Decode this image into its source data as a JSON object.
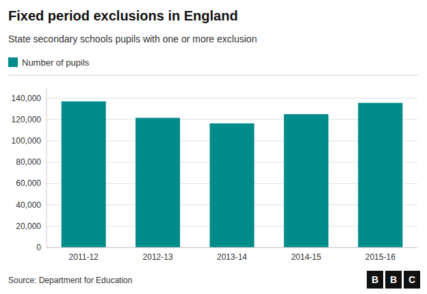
{
  "chart_data": {
    "type": "bar",
    "title": "Fixed period exclusions in England",
    "subtitle": "State secondary schools pupils with one or more exclusion",
    "categories": [
      "2011-12",
      "2012-13",
      "2013-14",
      "2014-15",
      "2015-16"
    ],
    "series": [
      {
        "name": "Number of pupils",
        "color": "#008B8B",
        "values": [
          136980,
          121560,
          116360,
          125020,
          135590
        ]
      }
    ],
    "ylim": [
      0,
      150000
    ],
    "yticks": [
      0,
      {
        "value": 20000,
        "label": "20,000"
      },
      {
        "value": 40000,
        "label": "40,000"
      },
      {
        "value": 60000,
        "label": "60,000"
      },
      {
        "value": 80000,
        "label": "80,000"
      },
      {
        "value": 100000,
        "label": "100,000"
      },
      {
        "value": 120000,
        "label": "120,000"
      },
      {
        "value": 140000,
        "label": "140,000"
      }
    ],
    "grid": true,
    "legend": "top-left",
    "annotations": [
      "Source: Department for Education",
      "BBC"
    ]
  }
}
